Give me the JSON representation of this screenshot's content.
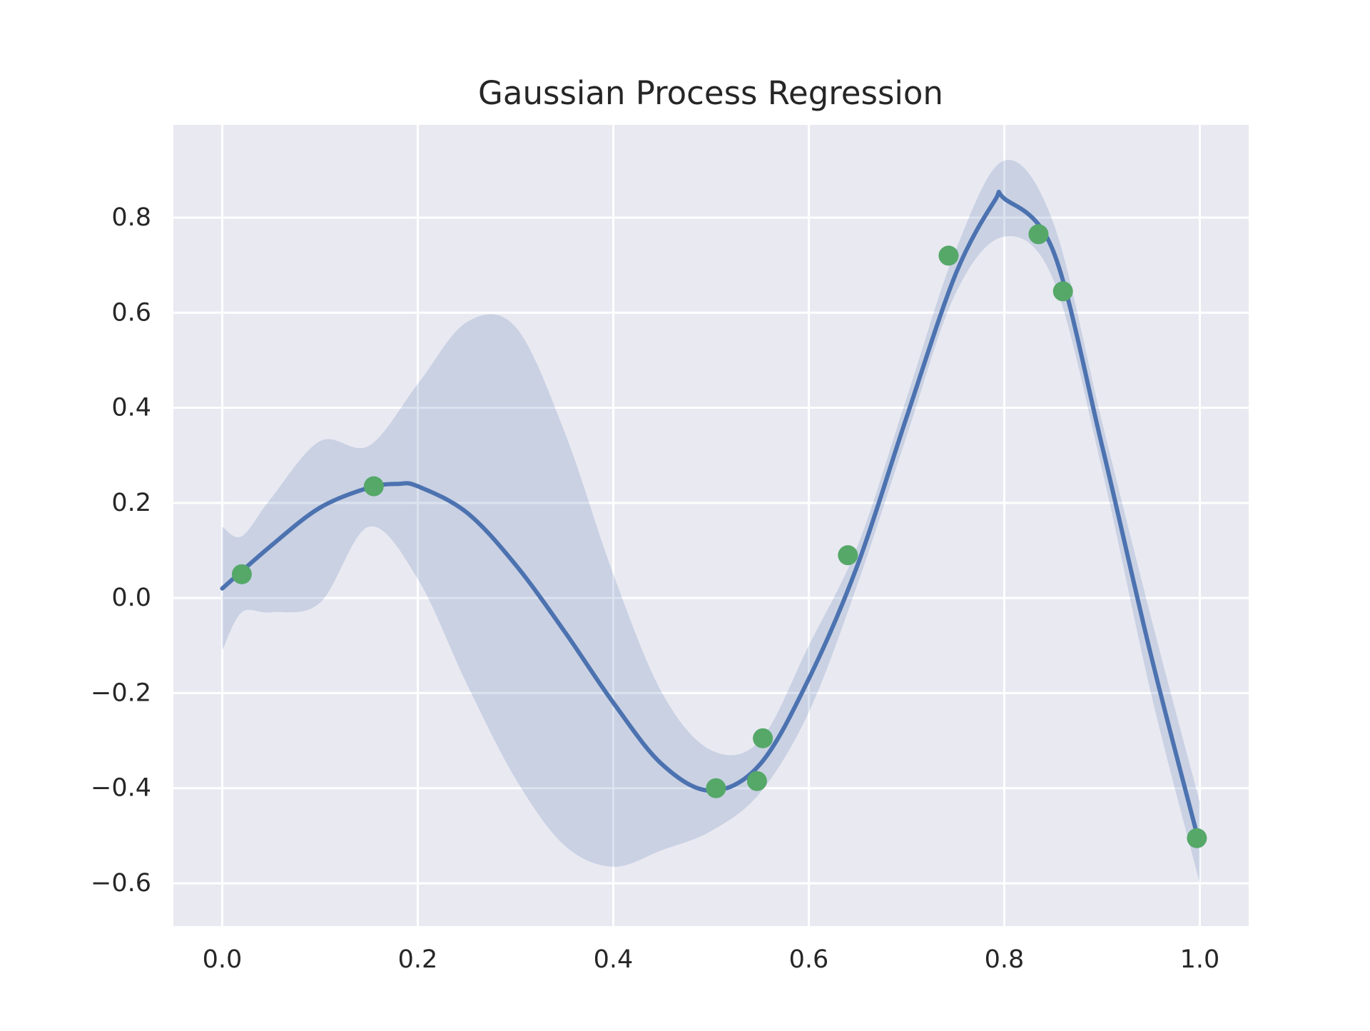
{
  "chart_data": {
    "type": "line",
    "title": "Gaussian Process Regression",
    "xlabel": "",
    "ylabel": "",
    "xlim": [
      -0.05,
      1.05
    ],
    "ylim": [
      -0.69,
      0.995
    ],
    "x_ticks": [
      0.0,
      0.2,
      0.4,
      0.6,
      0.8,
      1.0
    ],
    "x_tick_labels": [
      "0.0",
      "0.2",
      "0.4",
      "0.6",
      "0.8",
      "1.0"
    ],
    "y_ticks": [
      -0.6,
      -0.4,
      -0.2,
      0.0,
      0.2,
      0.4,
      0.6,
      0.8
    ],
    "y_tick_labels": [
      "−0.6",
      "−0.4",
      "−0.2",
      "0.0",
      "0.2",
      "0.4",
      "0.6",
      "0.8"
    ],
    "grid": true,
    "legend": "none",
    "colors": {
      "plot_background": "#e9e9f1",
      "grid": "#ffffff",
      "mean_line": "#4c72b0",
      "confidence_band": "#4c72b0",
      "observations": "#55a868",
      "text": "#262626"
    },
    "series": [
      {
        "type": "line",
        "x": [
          0.0,
          0.05,
          0.1,
          0.15,
          0.18,
          0.2,
          0.25,
          0.3,
          0.35,
          0.4,
          0.45,
          0.5,
          0.55,
          0.6,
          0.65,
          0.7,
          0.75,
          0.79,
          0.8,
          0.85,
          0.9,
          0.95,
          1.0
        ],
        "y": [
          0.02,
          0.11,
          0.19,
          0.232,
          0.24,
          0.235,
          0.18,
          0.07,
          -0.07,
          -0.22,
          -0.35,
          -0.405,
          -0.35,
          -0.17,
          0.07,
          0.38,
          0.68,
          0.835,
          0.84,
          0.73,
          0.32,
          -0.12,
          -0.52
        ]
      },
      {
        "type": "band",
        "x": [
          0.0,
          0.02,
          0.05,
          0.1,
          0.15,
          0.2,
          0.25,
          0.3,
          0.35,
          0.4,
          0.45,
          0.5,
          0.55,
          0.6,
          0.65,
          0.7,
          0.75,
          0.8,
          0.85,
          0.9,
          0.95,
          1.0
        ],
        "upper": [
          0.15,
          0.13,
          0.21,
          0.33,
          0.32,
          0.45,
          0.58,
          0.57,
          0.35,
          0.05,
          -0.2,
          -0.32,
          -0.3,
          -0.1,
          0.11,
          0.42,
          0.73,
          0.92,
          0.79,
          0.37,
          -0.04,
          -0.43
        ],
        "lower": [
          -0.11,
          -0.03,
          -0.03,
          -0.01,
          0.15,
          0.04,
          -0.18,
          -0.38,
          -0.52,
          -0.565,
          -0.53,
          -0.49,
          -0.41,
          -0.24,
          0.03,
          0.34,
          0.64,
          0.76,
          0.67,
          0.27,
          -0.2,
          -0.6
        ]
      },
      {
        "type": "scatter",
        "x": [
          0.02,
          0.155,
          0.505,
          0.547,
          0.553,
          0.64,
          0.743,
          0.835,
          0.86,
          0.997
        ],
        "y": [
          0.05,
          0.235,
          -0.4,
          -0.385,
          -0.295,
          0.09,
          0.72,
          0.765,
          0.645,
          -0.505
        ]
      }
    ]
  }
}
